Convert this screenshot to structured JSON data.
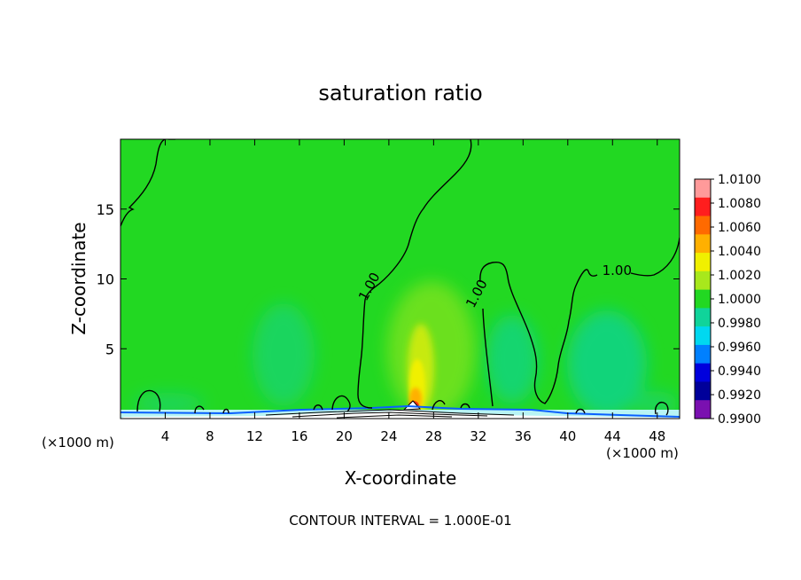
{
  "chart_data": {
    "type": "heatmap",
    "title": "saturation ratio",
    "xlabel": "X-coordinate",
    "ylabel": "Z-coordinate",
    "x_unit_left": "(×1000 m)",
    "x_unit_right": "(×1000 m)",
    "xlim": [
      0,
      50
    ],
    "ylim": [
      0,
      20
    ],
    "x_ticks": [
      4,
      8,
      12,
      16,
      20,
      24,
      28,
      32,
      36,
      40,
      44,
      48
    ],
    "y_ticks": [
      5,
      10,
      15
    ],
    "footer": "CONTOUR INTERVAL = 1.000E-01",
    "contour_labels": [
      {
        "text": "1.00",
        "x": 22.6,
        "z": 9.3
      },
      {
        "text": "1.00",
        "x": 32.2,
        "z": 8.8
      },
      {
        "text": "1.00",
        "x": 44.4,
        "z": 10.3
      }
    ],
    "colorbar": {
      "levels": [
        "1.0100",
        "1.0080",
        "1.0060",
        "1.0040",
        "1.0020",
        "1.0000",
        "0.9980",
        "0.9960",
        "0.9940",
        "0.9920",
        "0.9900"
      ],
      "colors": [
        "#ff9a9a",
        "#ff1e1e",
        "#ff6a00",
        "#ffb000",
        "#f0f000",
        "#a8e81c",
        "#22d822",
        "#10d49a",
        "#00d8f0",
        "#0080ff",
        "#0000dd",
        "#00009a",
        "#7a10b0"
      ]
    },
    "background_color": "#22d822",
    "features": [
      {
        "name": "moist-plume",
        "x": 26.5,
        "z": 1.0,
        "max_value": 1.01
      },
      {
        "name": "dry-region",
        "x": 43,
        "z": 4,
        "min_value": 0.998
      },
      {
        "name": "dry-region",
        "x": 34,
        "z": 4,
        "min_value": 0.998
      },
      {
        "name": "dry-region",
        "x": 15,
        "z": 4,
        "min_value": 0.9985
      }
    ]
  }
}
